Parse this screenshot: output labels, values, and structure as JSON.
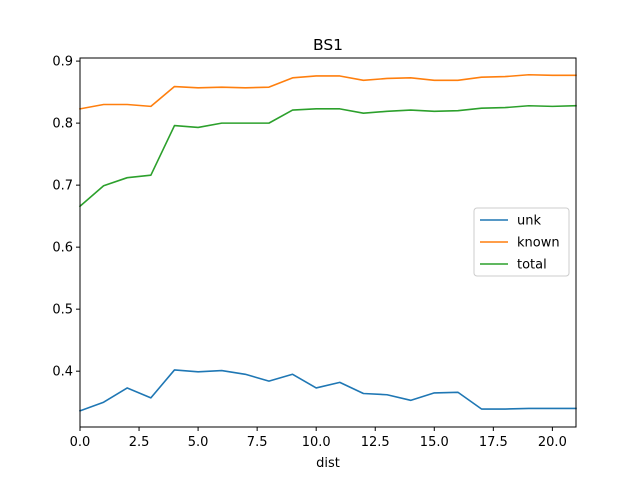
{
  "chart_data": {
    "type": "line",
    "title": "BS1",
    "xlabel": "dist",
    "ylabel": "",
    "xlim": [
      0,
      21
    ],
    "ylim": [
      0.31,
      0.905
    ],
    "xticks": [
      0.0,
      2.5,
      5.0,
      7.5,
      10.0,
      12.5,
      15.0,
      17.5,
      20.0
    ],
    "xtick_labels": [
      "0.0",
      "2.5",
      "5.0",
      "7.5",
      "10.0",
      "12.5",
      "15.0",
      "17.5",
      "20.0"
    ],
    "yticks": [
      0.4,
      0.5,
      0.6,
      0.7,
      0.8,
      0.9
    ],
    "ytick_labels": [
      "0.4",
      "0.5",
      "0.6",
      "0.7",
      "0.8",
      "0.9"
    ],
    "grid": false,
    "legend_position": "center-right",
    "x": [
      0,
      1,
      2,
      3,
      4,
      5,
      6,
      7,
      8,
      9,
      10,
      11,
      12,
      13,
      14,
      15,
      16,
      17,
      18,
      19,
      20,
      21
    ],
    "series": [
      {
        "name": "unk",
        "color": "#1f77b4",
        "values": [
          0.336,
          0.35,
          0.373,
          0.357,
          0.402,
          0.399,
          0.401,
          0.395,
          0.384,
          0.395,
          0.373,
          0.382,
          0.364,
          0.362,
          0.353,
          0.365,
          0.366,
          0.339,
          0.339,
          0.34,
          0.34,
          0.34
        ]
      },
      {
        "name": "known",
        "color": "#ff7f0e",
        "values": [
          0.823,
          0.83,
          0.83,
          0.827,
          0.859,
          0.857,
          0.858,
          0.857,
          0.858,
          0.873,
          0.876,
          0.876,
          0.869,
          0.872,
          0.873,
          0.869,
          0.869,
          0.874,
          0.875,
          0.878,
          0.877,
          0.877
        ]
      },
      {
        "name": "total",
        "color": "#2ca02c",
        "values": [
          0.666,
          0.699,
          0.712,
          0.716,
          0.796,
          0.793,
          0.8,
          0.8,
          0.8,
          0.821,
          0.823,
          0.823,
          0.816,
          0.819,
          0.821,
          0.819,
          0.82,
          0.824,
          0.825,
          0.828,
          0.827,
          0.828
        ]
      }
    ]
  }
}
